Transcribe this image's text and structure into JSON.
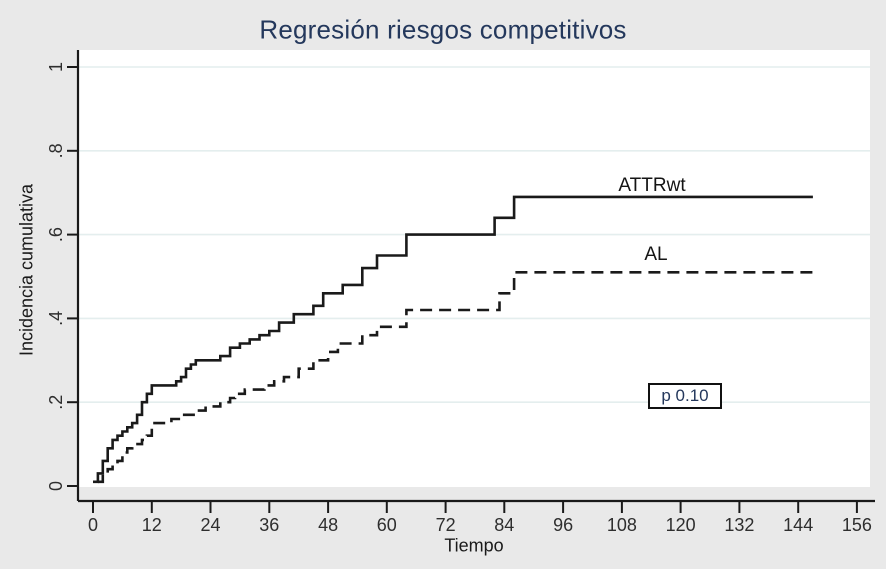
{
  "chart_data": {
    "type": "line",
    "variant": "step_cumulative_incidence",
    "title": "Regresión riesgos competitivos",
    "xlabel": "Tiempo",
    "ylabel": "Incidencia cumulativa",
    "xlim": [
      0,
      156
    ],
    "ylim": [
      0,
      1
    ],
    "xticks": [
      0,
      12,
      24,
      36,
      48,
      60,
      72,
      84,
      96,
      108,
      120,
      132,
      144,
      156
    ],
    "yticks": [
      0,
      0.2,
      0.4,
      0.6,
      0.8,
      1
    ],
    "ytick_labels": [
      "0",
      ".2",
      ".4",
      ".6",
      ".8",
      "1"
    ],
    "grid": {
      "horizontal": true,
      "vertical": false
    },
    "legend": "labels at curve end",
    "series": [
      {
        "name": "ATTRwt",
        "line_style": "solid",
        "color": "#1a1a1a",
        "end_x": 147,
        "points": [
          [
            0,
            0.01
          ],
          [
            1,
            0.03
          ],
          [
            2,
            0.06
          ],
          [
            3,
            0.09
          ],
          [
            4,
            0.11
          ],
          [
            5,
            0.12
          ],
          [
            6,
            0.13
          ],
          [
            7,
            0.14
          ],
          [
            8,
            0.15
          ],
          [
            9,
            0.17
          ],
          [
            10,
            0.2
          ],
          [
            11,
            0.22
          ],
          [
            12,
            0.24
          ],
          [
            17,
            0.25
          ],
          [
            18,
            0.26
          ],
          [
            19,
            0.28
          ],
          [
            20,
            0.29
          ],
          [
            21,
            0.3
          ],
          [
            26,
            0.31
          ],
          [
            28,
            0.33
          ],
          [
            30,
            0.34
          ],
          [
            32,
            0.35
          ],
          [
            34,
            0.36
          ],
          [
            36,
            0.37
          ],
          [
            38,
            0.39
          ],
          [
            41,
            0.41
          ],
          [
            45,
            0.43
          ],
          [
            47,
            0.46
          ],
          [
            51,
            0.48
          ],
          [
            55,
            0.52
          ],
          [
            58,
            0.55
          ],
          [
            64,
            0.6
          ],
          [
            82,
            0.64
          ],
          [
            86,
            0.69
          ]
        ]
      },
      {
        "name": "AL",
        "line_style": "dashed",
        "color": "#1a1a1a",
        "end_x": 147,
        "points": [
          [
            1,
            0.01
          ],
          [
            2,
            0.03
          ],
          [
            3,
            0.04
          ],
          [
            4,
            0.05
          ],
          [
            5,
            0.06
          ],
          [
            6,
            0.08
          ],
          [
            7,
            0.09
          ],
          [
            8,
            0.1
          ],
          [
            10,
            0.11
          ],
          [
            11,
            0.12
          ],
          [
            12,
            0.15
          ],
          [
            16,
            0.16
          ],
          [
            18,
            0.17
          ],
          [
            21,
            0.18
          ],
          [
            23,
            0.19
          ],
          [
            26,
            0.2
          ],
          [
            28,
            0.21
          ],
          [
            29,
            0.22
          ],
          [
            31,
            0.23
          ],
          [
            35,
            0.24
          ],
          [
            37,
            0.25
          ],
          [
            39,
            0.26
          ],
          [
            42,
            0.28
          ],
          [
            45,
            0.3
          ],
          [
            48,
            0.32
          ],
          [
            50,
            0.34
          ],
          [
            55,
            0.36
          ],
          [
            58,
            0.38
          ],
          [
            64,
            0.42
          ],
          [
            83,
            0.46
          ],
          [
            86,
            0.51
          ]
        ]
      }
    ],
    "annotation": {
      "text": "p 0.10",
      "x": 113,
      "y": 0.21
    }
  },
  "colors": {
    "background": "#e9e9e9",
    "plot_background": "#ffffff",
    "gridline": "#e4eeee",
    "axis": "#1a1a1a",
    "tick_label": "#2e2e2e",
    "title": "#24385c",
    "axis_title": "#1a1a1a",
    "series_label": "#141414",
    "annotation_text": "#24385c"
  }
}
